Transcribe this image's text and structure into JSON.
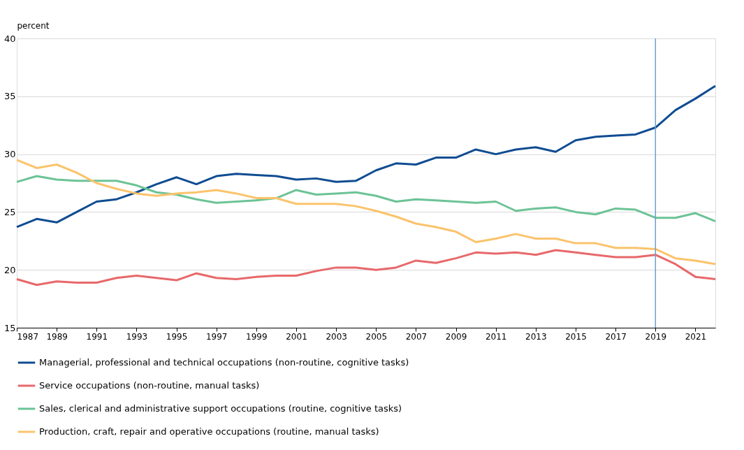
{
  "chart_data": {
    "type": "line",
    "ylabel": "percent",
    "x": [
      1987,
      1988,
      1989,
      1990,
      1991,
      1992,
      1993,
      1994,
      1995,
      1996,
      1997,
      1998,
      1999,
      2000,
      2001,
      2002,
      2003,
      2004,
      2005,
      2006,
      2007,
      2008,
      2009,
      2010,
      2011,
      2012,
      2013,
      2014,
      2015,
      2016,
      2017,
      2018,
      2019,
      2020,
      2021,
      2022
    ],
    "series": [
      {
        "name": "Managerial, professional and technical occupations (non-routine, cognitive tasks)",
        "color": "#0f4c92",
        "values": [
          23.7,
          24.4,
          24.1,
          25.0,
          25.9,
          26.1,
          26.7,
          27.4,
          28.0,
          27.4,
          28.1,
          28.3,
          28.2,
          28.1,
          27.8,
          27.9,
          27.6,
          27.7,
          28.6,
          29.2,
          29.1,
          29.7,
          29.7,
          30.4,
          30.0,
          30.4,
          30.6,
          30.2,
          31.2,
          31.5,
          31.6,
          31.7,
          32.3,
          33.8,
          34.8,
          35.9
        ]
      },
      {
        "name": "Service occupations (non-routine, manual tasks)",
        "color": "#e8686a",
        "values": [
          19.2,
          18.7,
          19.0,
          18.9,
          18.9,
          19.3,
          19.5,
          19.3,
          19.1,
          19.7,
          19.3,
          19.2,
          19.4,
          19.5,
          19.5,
          19.9,
          20.2,
          20.2,
          20.0,
          20.2,
          20.8,
          20.6,
          21.0,
          21.5,
          21.4,
          21.5,
          21.3,
          21.7,
          21.5,
          21.3,
          21.1,
          21.1,
          21.3,
          20.5,
          19.4,
          19.2
        ]
      },
      {
        "name": "Sales, clerical and administrative support occupations (routine, cognitive tasks)",
        "color": "#6cc396",
        "values": [
          27.6,
          28.1,
          27.8,
          27.7,
          27.7,
          27.7,
          27.3,
          26.7,
          26.5,
          26.1,
          25.8,
          25.9,
          26.0,
          26.2,
          26.9,
          26.5,
          26.6,
          26.7,
          26.4,
          25.9,
          26.1,
          26.0,
          25.9,
          25.8,
          25.9,
          25.1,
          25.3,
          25.4,
          25.0,
          24.8,
          25.3,
          25.2,
          24.5,
          24.5,
          24.9,
          24.2
        ]
      },
      {
        "name": "Production, craft, repair and operative occupations (routine, manual tasks)",
        "color": "#fbc36c",
        "values": [
          29.5,
          28.8,
          29.1,
          28.4,
          27.5,
          27.0,
          26.6,
          26.4,
          26.6,
          26.7,
          26.9,
          26.6,
          26.2,
          26.2,
          25.7,
          25.7,
          25.7,
          25.5,
          25.1,
          24.6,
          24.0,
          23.7,
          23.3,
          22.4,
          22.7,
          23.1,
          22.7,
          22.7,
          22.3,
          22.3,
          21.9,
          21.9,
          21.8,
          21.0,
          20.8,
          20.5
        ]
      }
    ],
    "xlim": [
      1987,
      2022
    ],
    "xticks": [
      1987,
      1989,
      1991,
      1993,
      1995,
      1997,
      1999,
      2001,
      2003,
      2005,
      2007,
      2009,
      2011,
      2013,
      2015,
      2017,
      2019,
      2021
    ],
    "ylim": [
      15,
      40
    ],
    "yticks": [
      15,
      20,
      25,
      30,
      35,
      40
    ],
    "ref_lines": [
      {
        "axis": "x",
        "value": 2019,
        "color": "#6a9fcf"
      }
    ],
    "grid": "y",
    "legend": "bottom",
    "marker": "none",
    "line_style": "solid"
  }
}
